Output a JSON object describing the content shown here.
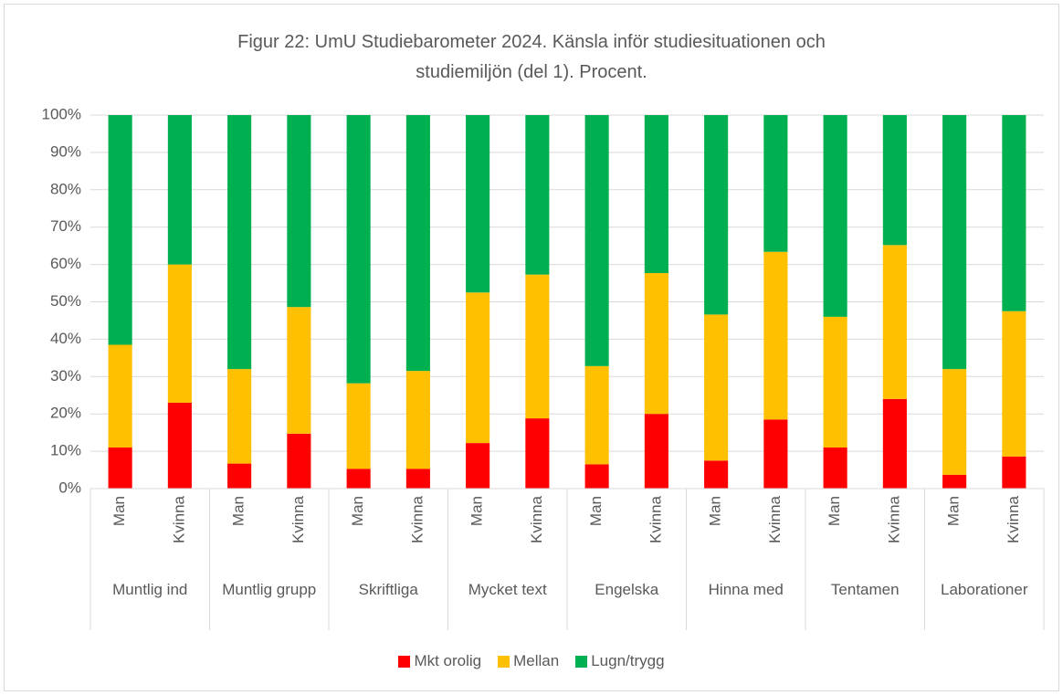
{
  "chart_data": {
    "type": "stacked_bar",
    "title": "Figur 22: UmU Studiebarometer 2024. Känsla inför studiesituationen och studiemiljön (del 1). Procent.",
    "categories": [
      "Man",
      "Kvinna",
      "Man",
      "Kvinna",
      "Man",
      "Kvinna",
      "Man",
      "Kvinna",
      "Man",
      "Kvinna",
      "Man",
      "Kvinna",
      "Man",
      "Kvinna",
      "Man",
      "Kvinna"
    ],
    "groups": [
      "Muntlig ind",
      "Muntlig grupp",
      "Skriftliga",
      "Mycket text",
      "Engelska",
      "Hinna med",
      "Tentamen",
      "Laborationer"
    ],
    "series": [
      {
        "name": "Mkt orolig",
        "color": "#ff0000",
        "values": [
          11,
          23,
          6.7,
          14.7,
          5.3,
          5.3,
          12.2,
          18.8,
          6.5,
          20,
          7.5,
          18.5,
          11,
          24,
          3.7,
          8.6
        ]
      },
      {
        "name": "Mellan",
        "color": "#ffc000",
        "values": [
          27.5,
          37,
          25.3,
          33.9,
          22.9,
          26.2,
          40.3,
          38.5,
          26.3,
          37.7,
          39.1,
          44.9,
          35,
          41.2,
          28.3,
          38.9
        ]
      },
      {
        "name": "Lugn/trygg",
        "color": "#00b050",
        "values": [
          61.5,
          40,
          68,
          51.4,
          71.8,
          68.5,
          47.5,
          42.7,
          67.2,
          42.3,
          53.4,
          36.6,
          54,
          34.8,
          68,
          52.5
        ]
      }
    ],
    "ylim": [
      0,
      100
    ],
    "yticks": [
      {
        "value": 0,
        "label": "0%"
      },
      {
        "value": 10,
        "label": "10%"
      },
      {
        "value": 20,
        "label": "20%"
      },
      {
        "value": 30,
        "label": "30%"
      },
      {
        "value": 40,
        "label": "40%"
      },
      {
        "value": 50,
        "label": "50%"
      },
      {
        "value": 60,
        "label": "60%"
      },
      {
        "value": 70,
        "label": "70%"
      },
      {
        "value": 80,
        "label": "80%"
      },
      {
        "value": 90,
        "label": "90%"
      },
      {
        "value": 100,
        "label": "100%"
      }
    ],
    "grid": true,
    "legend": "bottom"
  }
}
